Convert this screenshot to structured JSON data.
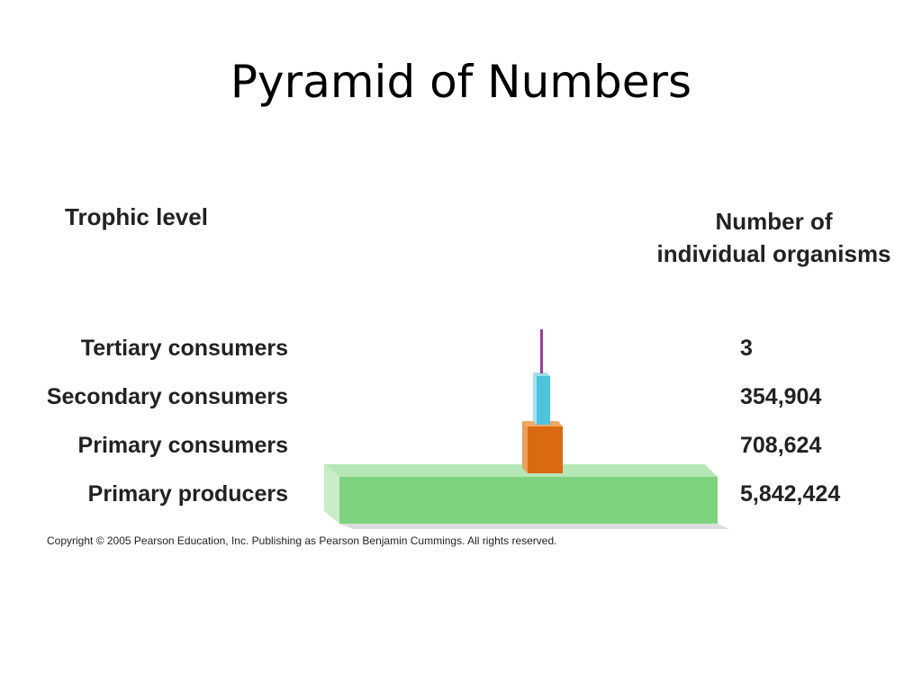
{
  "slide": {
    "title": "Pyramid of Numbers"
  },
  "headers": {
    "trophic_level": "Trophic level",
    "number_line1": "Number of",
    "number_line2": "individual organisms"
  },
  "levels": [
    {
      "label": "Tertiary consumers",
      "count": "3",
      "color": "#9b3f94"
    },
    {
      "label": "Secondary consumers",
      "count": "354,904",
      "color": "#4ec3de"
    },
    {
      "label": "Primary consumers",
      "count": "708,624",
      "color": "#d96a12"
    },
    {
      "label": "Primary producers",
      "count": "5,842,424",
      "color": "#7dd37d"
    }
  ],
  "footer": {
    "copyright": "Copyright ©  2005 Pearson Education, Inc. Publishing as Pearson Benjamin Cummings. All rights reserved."
  }
}
